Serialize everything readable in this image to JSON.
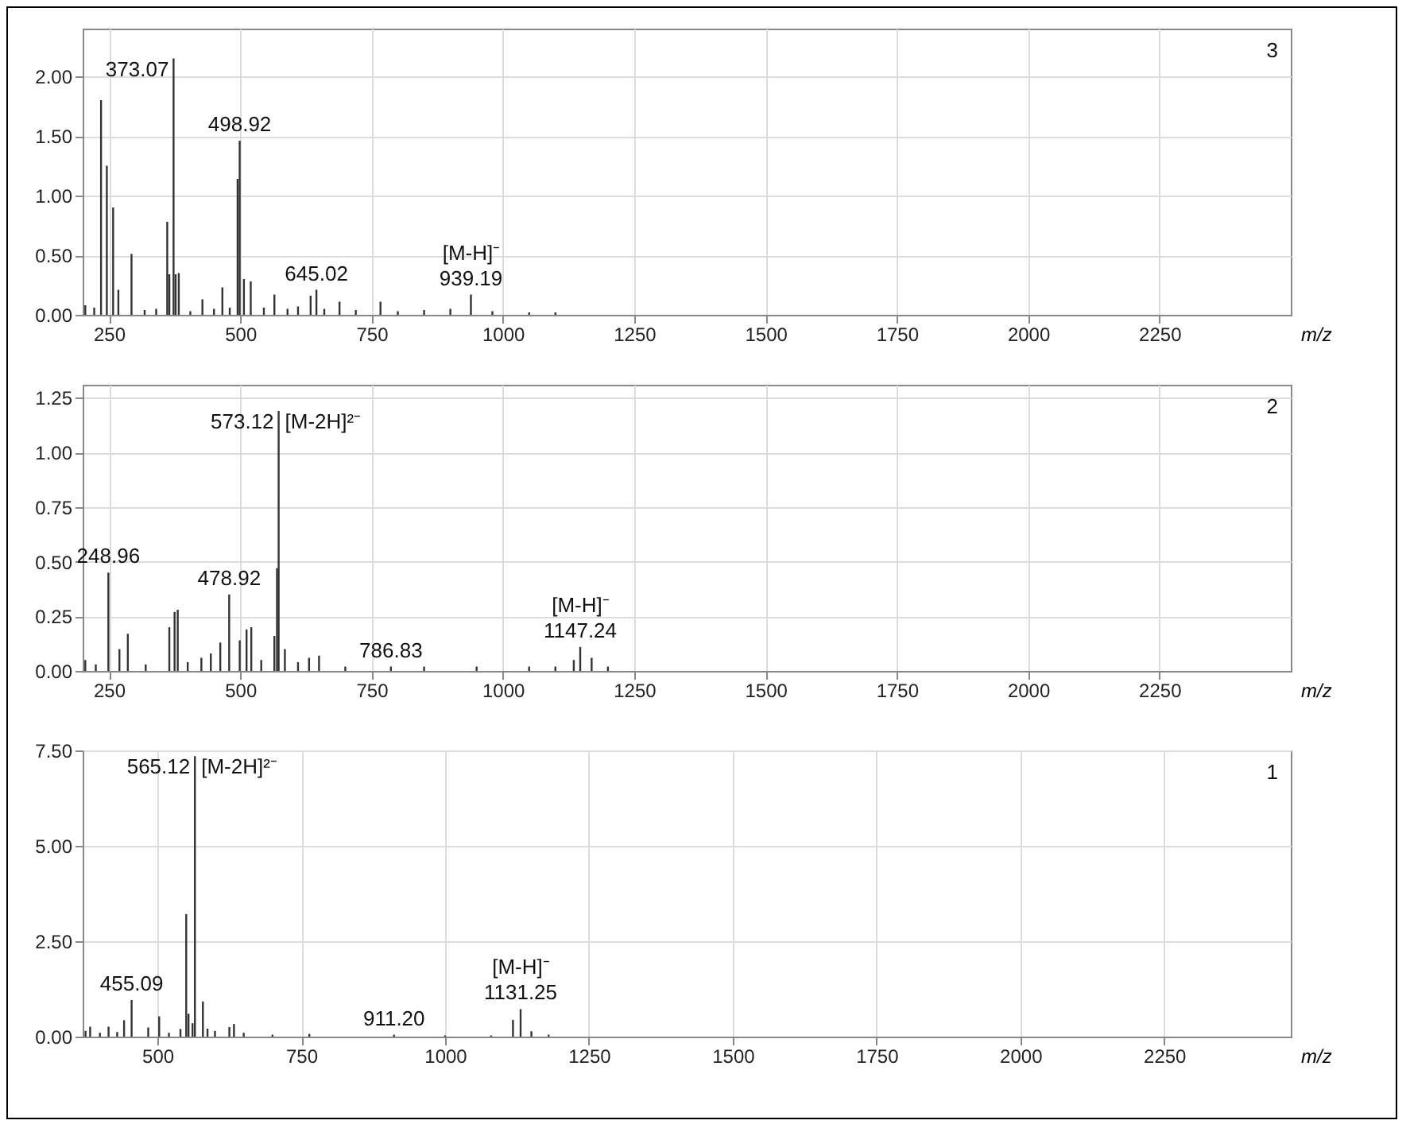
{
  "chart_data": [
    {
      "type": "bar",
      "xlabel": "m/z",
      "color": "#333333",
      "grid": true,
      "xlim": [
        200,
        2500
      ],
      "xticks": [
        250,
        500,
        750,
        1000,
        1250,
        1500,
        1750,
        2000,
        2250
      ],
      "ylim": [
        0,
        2.4
      ],
      "yticks": [
        {
          "value": 0,
          "label": "0.00"
        },
        {
          "value": 0.5,
          "label": "0.50"
        },
        {
          "value": 1,
          "label": "1.00"
        },
        {
          "value": 1.5,
          "label": "1.50"
        },
        {
          "value": 2,
          "label": "2.00"
        }
      ],
      "x": [
        205,
        222,
        235,
        246,
        258,
        268,
        293,
        318,
        340,
        361,
        365,
        373.07,
        377,
        383,
        405,
        428,
        450,
        466,
        480,
        495,
        498.92,
        507,
        520,
        545,
        565,
        590,
        610,
        634,
        645.02,
        660,
        689,
        720,
        767,
        800,
        850,
        900,
        939.19,
        980,
        1050,
        1100
      ],
      "values": [
        0.08,
        0.06,
        1.8,
        1.25,
        0.9,
        0.21,
        0.51,
        0.04,
        0.05,
        0.78,
        0.34,
        2.15,
        0.34,
        0.35,
        0.03,
        0.13,
        0.05,
        0.23,
        0.06,
        1.14,
        1.46,
        0.3,
        0.28,
        0.06,
        0.17,
        0.05,
        0.07,
        0.16,
        0.21,
        0.05,
        0.11,
        0.04,
        0.11,
        0.03,
        0.04,
        0.05,
        0.17,
        0.03,
        0.02,
        0.02
      ],
      "annotations": [
        {
          "text": "373.07",
          "x": 373.07,
          "y": 2.15
        },
        {
          "text": "498.92",
          "x": 498.92,
          "y": 1.46
        },
        {
          "text": "645.02",
          "x": 645.02,
          "y": 0.21
        },
        {
          "text": "939.19",
          "x": 939.19,
          "y": 0.17
        },
        {
          "text": "[M-H]⁻",
          "x": 939.19,
          "y": 0.17
        },
        "3"
      ]
    },
    {
      "type": "bar",
      "xlabel": "m/z",
      "color": "#333333",
      "grid": true,
      "xlim": [
        200,
        2500
      ],
      "xticks": [
        250,
        500,
        750,
        1000,
        1250,
        1500,
        1750,
        2000,
        2250
      ],
      "ylim": [
        0,
        1.31
      ],
      "yticks": [
        {
          "value": 0,
          "label": "0.00"
        },
        {
          "value": 0.25,
          "label": "0.25"
        },
        {
          "value": 0.5,
          "label": "0.50"
        },
        {
          "value": 0.75,
          "label": "0.75"
        },
        {
          "value": 1,
          "label": "1.00"
        },
        {
          "value": 1.25,
          "label": "1.25"
        }
      ],
      "x": [
        205,
        225,
        248.96,
        270,
        286,
        320,
        365,
        375,
        381,
        400,
        426,
        444,
        462,
        478.92,
        499,
        512,
        521,
        540,
        565,
        570,
        573.12,
        585,
        610,
        631,
        650,
        700,
        786.83,
        850,
        950,
        1050,
        1100,
        1135,
        1147.24,
        1169,
        1200
      ],
      "values": [
        0.05,
        0.03,
        0.45,
        0.1,
        0.17,
        0.03,
        0.2,
        0.27,
        0.28,
        0.04,
        0.06,
        0.08,
        0.13,
        0.35,
        0.14,
        0.19,
        0.2,
        0.05,
        0.16,
        0.47,
        1.19,
        0.1,
        0.04,
        0.06,
        0.07,
        0.02,
        0.02,
        0.02,
        0.02,
        0.02,
        0.02,
        0.05,
        0.11,
        0.06,
        0.02
      ],
      "annotations": [
        {
          "text": "248.96",
          "x": 248.96,
          "y": 0.45
        },
        {
          "text": "573.12",
          "x": 573.12,
          "y": 1.19
        },
        {
          "text": "[M-2H]²⁻",
          "x": 573.12,
          "y": 1.19
        },
        {
          "text": "478.92",
          "x": 478.92,
          "y": 0.35
        },
        {
          "text": "786.83",
          "x": 786.83,
          "y": 0.02
        },
        {
          "text": "1147.24",
          "x": 1147.24,
          "y": 0.11
        },
        {
          "text": "[M-H]⁻",
          "x": 1147.24,
          "y": 0.11
        },
        "2"
      ]
    },
    {
      "type": "bar",
      "xlabel": "m/z",
      "color": "#333333",
      "grid": true,
      "xlim": [
        370,
        2470
      ],
      "xticks": [
        500,
        750,
        1000,
        1250,
        1500,
        1750,
        2000,
        2250
      ],
      "ylim": [
        0,
        7.5
      ],
      "yticks": [
        {
          "value": 0,
          "label": "0.00"
        },
        {
          "value": 2.5,
          "label": "2.50"
        },
        {
          "value": 5,
          "label": "5.00"
        },
        {
          "value": 7.5,
          "label": "7.50"
        }
      ],
      "x": [
        375,
        383,
        400,
        415,
        430,
        442,
        455.09,
        484,
        503,
        520,
        540,
        550,
        554,
        561,
        565.12,
        579,
        587,
        600,
        625,
        633,
        650,
        700,
        764,
        911.2,
        1000,
        1080,
        1118,
        1131.25,
        1150,
        1180
      ],
      "values": [
        0.15,
        0.26,
        0.1,
        0.26,
        0.12,
        0.43,
        0.96,
        0.24,
        0.53,
        0.1,
        0.2,
        3.21,
        0.6,
        0.35,
        7.35,
        0.92,
        0.21,
        0.15,
        0.25,
        0.33,
        0.1,
        0.05,
        0.07,
        0.05,
        0.03,
        0.03,
        0.44,
        0.72,
        0.14,
        0.05
      ],
      "annotations": [
        {
          "text": "455.09",
          "x": 455.09,
          "y": 0.96
        },
        {
          "text": "565.12",
          "x": 565.12,
          "y": 7.35
        },
        {
          "text": "[M-2H]²⁻",
          "x": 565.12,
          "y": 7.35
        },
        {
          "text": "911.20",
          "x": 911.2,
          "y": 0.05
        },
        {
          "text": "1131.25",
          "x": 1131.25,
          "y": 0.72
        },
        {
          "text": "[M-H]⁻",
          "x": 1131.25,
          "y": 0.72
        },
        "1"
      ]
    }
  ]
}
